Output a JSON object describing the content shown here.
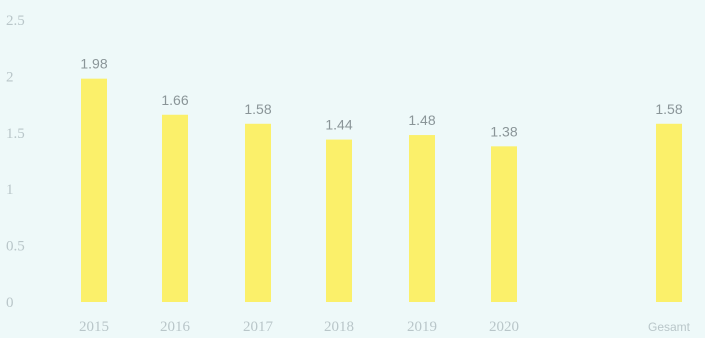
{
  "chart_data": {
    "type": "bar",
    "categories": [
      "2015",
      "2016",
      "2017",
      "2018",
      "2019",
      "2020",
      "Gesamt"
    ],
    "values": [
      1.98,
      1.66,
      1.58,
      1.44,
      1.48,
      1.38,
      1.58
    ],
    "data_labels": [
      "1.98",
      "1.66",
      "1.58",
      "1.44",
      "1.48",
      "1.38",
      "1.58"
    ],
    "yticks": [
      "0",
      "0.5",
      "1",
      "1.5",
      "2",
      "2.5"
    ],
    "ylim": [
      0,
      2.5
    ],
    "title": "",
    "xlabel": "",
    "ylabel": "",
    "grid": false,
    "legend": "none",
    "bar_color": "#fbf06a"
  }
}
